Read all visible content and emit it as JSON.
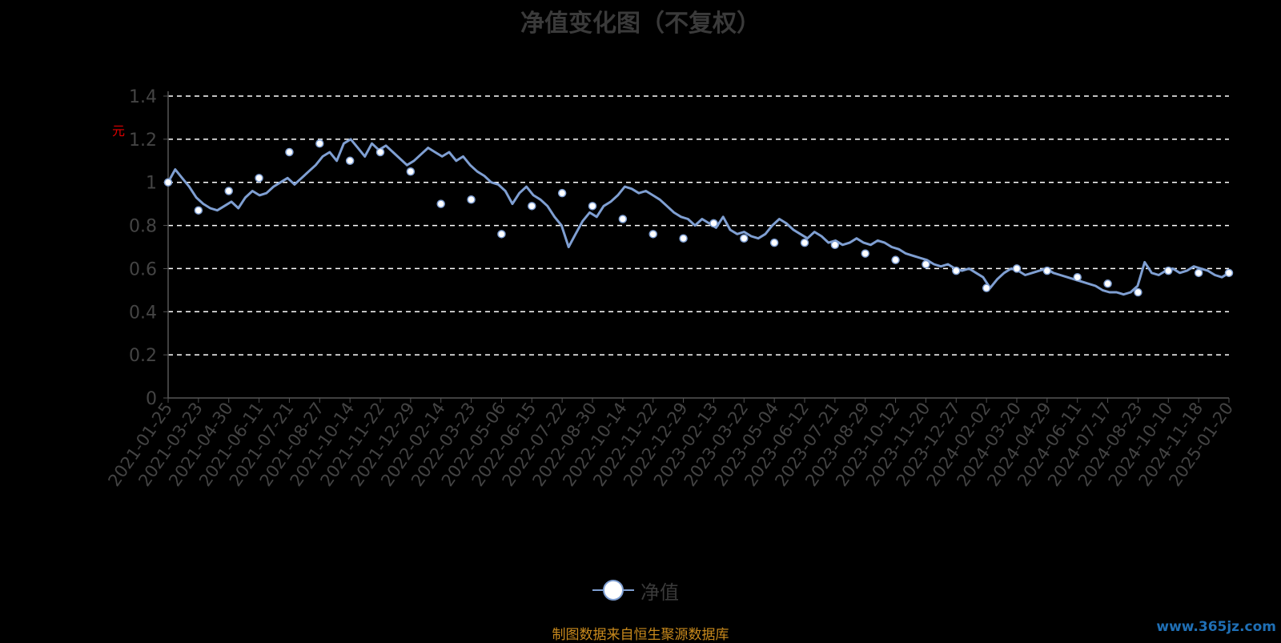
{
  "chart_data": {
    "type": "line",
    "title": "净值变化图（不复权）",
    "unit_label": "元",
    "ylim": [
      0,
      1.4
    ],
    "yticks": [
      "0",
      "0.2",
      "0.4",
      "0.6",
      "0.8",
      "1",
      "1.2",
      "1.4"
    ],
    "grid": true,
    "grid_style": "dashed",
    "legend_position": "bottom-center",
    "line_color": "#7f9fd2",
    "categories": [
      "2021-01-25",
      "2021-03-23",
      "2021-04-30",
      "2021-06-11",
      "2021-07-21",
      "2021-08-27",
      "2021-10-14",
      "2021-11-22",
      "2021-12-29",
      "2022-02-14",
      "2022-03-23",
      "2022-05-06",
      "2022-06-15",
      "2022-07-22",
      "2022-08-30",
      "2022-10-14",
      "2022-11-22",
      "2022-12-29",
      "2023-02-13",
      "2023-03-22",
      "2023-05-04",
      "2023-06-12",
      "2023-07-21",
      "2023-08-29",
      "2023-10-12",
      "2023-11-20",
      "2023-12-27",
      "2024-02-02",
      "2024-03-20",
      "2024-04-29",
      "2024-06-11",
      "2024-07-17",
      "2024-08-23",
      "2024-10-10",
      "2024-11-18",
      "2025-01-20"
    ],
    "series": [
      {
        "name": "净值",
        "marker_values": [
          1.0,
          0.87,
          0.96,
          1.02,
          1.14,
          1.18,
          1.1,
          1.14,
          1.05,
          0.9,
          0.92,
          0.76,
          0.89,
          0.95,
          0.89,
          0.83,
          0.76,
          0.74,
          0.81,
          0.74,
          0.72,
          0.72,
          0.71,
          0.67,
          0.64,
          0.62,
          0.59,
          0.51,
          0.6,
          0.59,
          0.56,
          0.53,
          0.49,
          0.59,
          0.58,
          0.58
        ],
        "path_values": [
          1.0,
          1.06,
          1.02,
          0.98,
          0.93,
          0.9,
          0.88,
          0.87,
          0.89,
          0.91,
          0.88,
          0.93,
          0.96,
          0.94,
          0.95,
          0.98,
          1.0,
          1.02,
          0.99,
          1.02,
          1.05,
          1.08,
          1.12,
          1.14,
          1.1,
          1.18,
          1.2,
          1.16,
          1.12,
          1.18,
          1.15,
          1.17,
          1.14,
          1.11,
          1.08,
          1.1,
          1.13,
          1.16,
          1.14,
          1.12,
          1.14,
          1.1,
          1.12,
          1.08,
          1.05,
          1.03,
          1.0,
          0.99,
          0.96,
          0.9,
          0.95,
          0.98,
          0.94,
          0.92,
          0.89,
          0.84,
          0.8,
          0.7,
          0.76,
          0.82,
          0.86,
          0.84,
          0.89,
          0.91,
          0.94,
          0.98,
          0.97,
          0.95,
          0.96,
          0.94,
          0.92,
          0.89,
          0.86,
          0.84,
          0.83,
          0.8,
          0.83,
          0.81,
          0.79,
          0.84,
          0.78,
          0.76,
          0.77,
          0.75,
          0.74,
          0.76,
          0.8,
          0.83,
          0.81,
          0.78,
          0.76,
          0.74,
          0.77,
          0.75,
          0.72,
          0.73,
          0.71,
          0.72,
          0.74,
          0.72,
          0.71,
          0.73,
          0.72,
          0.7,
          0.69,
          0.67,
          0.66,
          0.65,
          0.64,
          0.62,
          0.61,
          0.62,
          0.6,
          0.59,
          0.6,
          0.58,
          0.56,
          0.51,
          0.55,
          0.58,
          0.6,
          0.59,
          0.57,
          0.58,
          0.59,
          0.6,
          0.58,
          0.57,
          0.56,
          0.55,
          0.54,
          0.53,
          0.52,
          0.5,
          0.49,
          0.49,
          0.48,
          0.49,
          0.52,
          0.63,
          0.58,
          0.57,
          0.59,
          0.6,
          0.58,
          0.59,
          0.61,
          0.6,
          0.59,
          0.57,
          0.56,
          0.58
        ]
      }
    ]
  },
  "legend": {
    "label": "净值"
  },
  "footer": {
    "source": "制图数据来自恒生聚源数据库"
  },
  "watermark": {
    "text": "www.365jz.com"
  }
}
